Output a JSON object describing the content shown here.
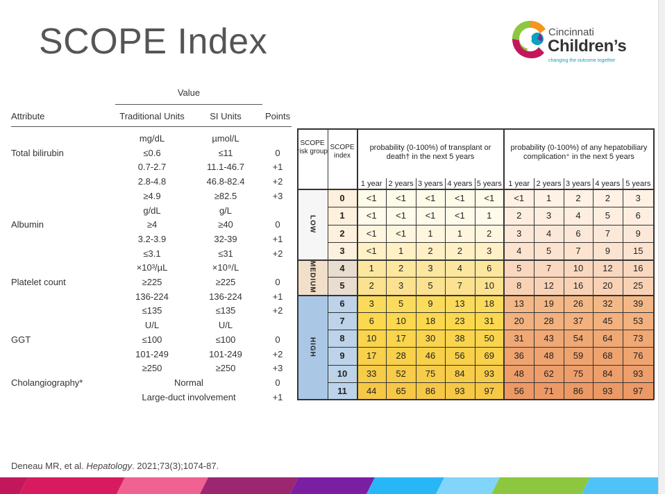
{
  "title": "SCOPE Index",
  "logo": {
    "line1": "Cincinnati",
    "line2": "Children’s",
    "tagline": "changing the outcome together"
  },
  "attribute_table": {
    "value_header": "Value",
    "headers": {
      "attribute": "Attribute",
      "traditional": "Traditional Units",
      "si": "SI Units",
      "points": "Points"
    },
    "rows": [
      {
        "attribute": "",
        "traditional": "mg/dL",
        "si": "µmol/L",
        "points": ""
      },
      {
        "attribute": "Total bilirubin",
        "traditional": "≤0.6",
        "si": "≤11",
        "points": "0"
      },
      {
        "attribute": "",
        "traditional": "0.7-2.7",
        "si": "11.1-46.7",
        "points": "+1"
      },
      {
        "attribute": "",
        "traditional": "2.8-4.8",
        "si": "46.8-82.4",
        "points": "+2"
      },
      {
        "attribute": "",
        "traditional": "≥4.9",
        "si": "≥82.5",
        "points": "+3"
      },
      {
        "attribute": "",
        "traditional": "g/dL",
        "si": "g/L",
        "points": ""
      },
      {
        "attribute": "Albumin",
        "traditional": "≥4",
        "si": "≥40",
        "points": "0"
      },
      {
        "attribute": "",
        "traditional": "3.2-3.9",
        "si": "32-39",
        "points": "+1"
      },
      {
        "attribute": "",
        "traditional": "≤3.1",
        "si": "≤31",
        "points": "+2"
      },
      {
        "attribute": "",
        "traditional": "×10³/µL",
        "si": "×10⁹/L",
        "points": ""
      },
      {
        "attribute": "Platelet count",
        "traditional": "≥225",
        "si": "≥225",
        "points": "0"
      },
      {
        "attribute": "",
        "traditional": "136-224",
        "si": "136-224",
        "points": "+1"
      },
      {
        "attribute": "",
        "traditional": "≤135",
        "si": "≤135",
        "points": "+2"
      },
      {
        "attribute": "",
        "traditional": "U/L",
        "si": "U/L",
        "points": ""
      },
      {
        "attribute": "GGT",
        "traditional": "≤100",
        "si": "≤100",
        "points": "0"
      },
      {
        "attribute": "",
        "traditional": "101-249",
        "si": "101-249",
        "points": "+2"
      },
      {
        "attribute": "",
        "traditional": "≥250",
        "si": "≥250",
        "points": "+3"
      },
      {
        "attribute": "Cholangiography*",
        "span": "Normal",
        "points": "0"
      },
      {
        "attribute": "",
        "span": "Large-duct involvement",
        "points": "+1"
      }
    ]
  },
  "risk_table": {
    "headers": {
      "group": "SCOPE risk group",
      "index": "SCOPE index",
      "transplant": "probability (0-100%) of transplant or death† in the next 5 years",
      "complication": "probability (0-100%) of any hepatobiliary complication⁺ in the next 5 years",
      "years": [
        "1 year",
        "2 years",
        "3 years",
        "4 years",
        "5 years"
      ]
    },
    "groups": [
      {
        "label": "LOW",
        "start": 0,
        "end": 3
      },
      {
        "label": "MEDIUM",
        "start": 4,
        "end": 5
      },
      {
        "label": "HIGH",
        "start": 6,
        "end": 11
      }
    ],
    "rows": [
      {
        "index": "0",
        "transplant": [
          "<1",
          "<1",
          "<1",
          "<1",
          "<1"
        ],
        "complication": [
          "<1",
          "1",
          "2",
          "2",
          "3"
        ]
      },
      {
        "index": "1",
        "transplant": [
          "<1",
          "<1",
          "<1",
          "<1",
          "1"
        ],
        "complication": [
          "2",
          "3",
          "4",
          "5",
          "6"
        ]
      },
      {
        "index": "2",
        "transplant": [
          "<1",
          "<1",
          "1",
          "1",
          "2"
        ],
        "complication": [
          "3",
          "4",
          "6",
          "7",
          "9"
        ]
      },
      {
        "index": "3",
        "transplant": [
          "<1",
          "1",
          "2",
          "2",
          "3"
        ],
        "complication": [
          "4",
          "5",
          "7",
          "9",
          "15"
        ]
      },
      {
        "index": "4",
        "transplant": [
          "1",
          "2",
          "3",
          "4",
          "6"
        ],
        "complication": [
          "5",
          "7",
          "10",
          "12",
          "16"
        ]
      },
      {
        "index": "5",
        "transplant": [
          "2",
          "3",
          "5",
          "7",
          "10"
        ],
        "complication": [
          "8",
          "12",
          "16",
          "20",
          "25"
        ]
      },
      {
        "index": "6",
        "transplant": [
          "3",
          "5",
          "9",
          "13",
          "18"
        ],
        "complication": [
          "13",
          "19",
          "26",
          "32",
          "39"
        ]
      },
      {
        "index": "7",
        "transplant": [
          "6",
          "10",
          "18",
          "23",
          "31"
        ],
        "complication": [
          "20",
          "28",
          "37",
          "45",
          "53"
        ]
      },
      {
        "index": "8",
        "transplant": [
          "10",
          "17",
          "30",
          "38",
          "50"
        ],
        "complication": [
          "31",
          "43",
          "54",
          "64",
          "73"
        ]
      },
      {
        "index": "9",
        "transplant": [
          "17",
          "28",
          "46",
          "56",
          "69"
        ],
        "complication": [
          "36",
          "48",
          "59",
          "68",
          "76"
        ]
      },
      {
        "index": "10",
        "transplant": [
          "33",
          "52",
          "75",
          "84",
          "93"
        ],
        "complication": [
          "48",
          "62",
          "75",
          "84",
          "93"
        ]
      },
      {
        "index": "11",
        "transplant": [
          "44",
          "65",
          "86",
          "93",
          "97"
        ],
        "complication": [
          "56",
          "71",
          "86",
          "93",
          "97"
        ]
      }
    ],
    "colors": {
      "low_index": "#fdf0dc",
      "medium_index": "#e9ddd0",
      "high_index": "#bcd3ea",
      "group_low": "#f6f6f6",
      "group_medium": "#f2dfc9",
      "group_high": "#aac8e6",
      "transplant_rows": [
        "#fffbe9",
        "#fffaea",
        "#fff6df",
        "#fff0c6",
        "#fde79f",
        "#fce190",
        "#fbdb5c",
        "#fbd84e",
        "#f9d44c",
        "#f8d04a",
        "#f6cc48",
        "#f6c846"
      ],
      "complication_rows": [
        "#fff2e4",
        "#fdeedf",
        "#fce8d8",
        "#fbe3d0",
        "#fad8bf",
        "#f9d2b6",
        "#f4b886",
        "#f2b17e",
        "#f0a875",
        "#efa36f",
        "#ed9e6b",
        "#ec9966"
      ]
    }
  },
  "citation": {
    "authors": "Deneau MR, et al. ",
    "journal": "Hepatology",
    "details": ". 2021;73(3);1074-87."
  }
}
